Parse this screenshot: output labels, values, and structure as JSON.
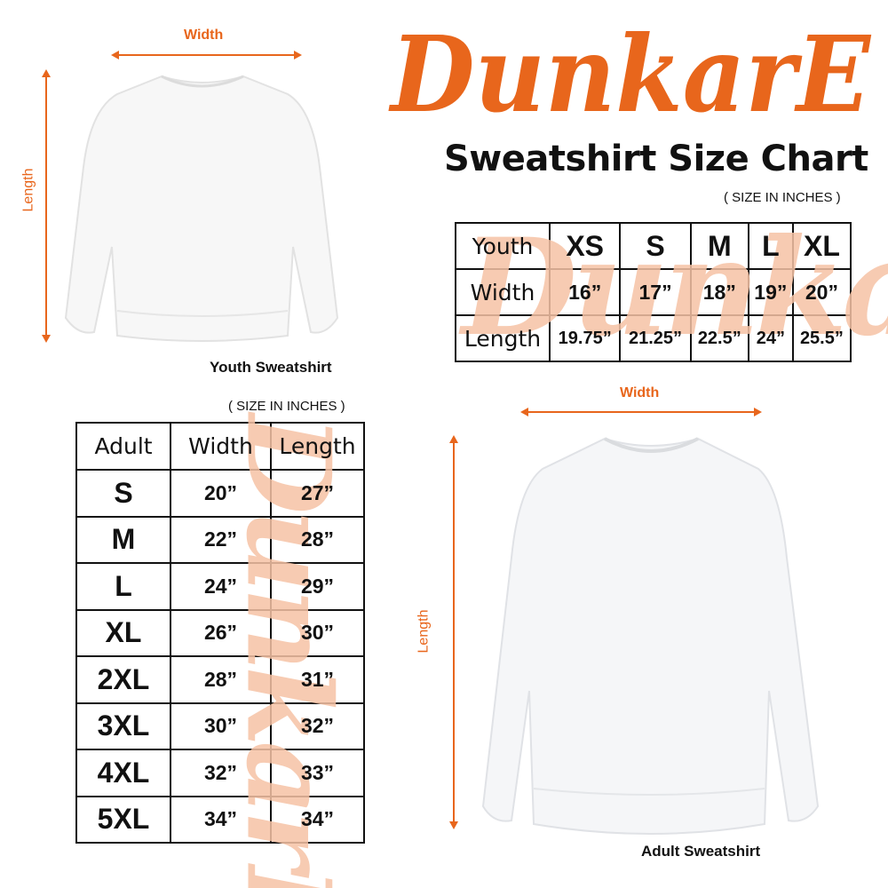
{
  "brand": {
    "logo_text": "DunkarE",
    "color": "#e8661c"
  },
  "title": "Sweatshirt Size Chart",
  "youth": {
    "units_note": "( SIZE IN INCHES )",
    "caption": "Youth Sweatshirt",
    "width_label": "Width",
    "length_label": "Length",
    "table": {
      "header": [
        "Youth",
        "XS",
        "S",
        "M",
        "L",
        "XL"
      ],
      "rows": [
        [
          "Width",
          "16”",
          "17”",
          "18”",
          "19”",
          "20”"
        ],
        [
          "Length",
          "19.75”",
          "21.25”",
          "22.5”",
          "24”",
          "25.5”"
        ]
      ]
    }
  },
  "adult": {
    "units_note": "( SIZE IN INCHES )",
    "caption": "Adult Sweatshirt",
    "width_label": "Width",
    "length_label": "Length",
    "table": {
      "header": [
        "Adult",
        "Width",
        "Length"
      ],
      "rows": [
        [
          "S",
          "20”",
          "27”"
        ],
        [
          "M",
          "22”",
          "28”"
        ],
        [
          "L",
          "24”",
          "29”"
        ],
        [
          "XL",
          "26”",
          "30”"
        ],
        [
          "2XL",
          "28”",
          "31”"
        ],
        [
          "3XL",
          "30”",
          "32”"
        ],
        [
          "4XL",
          "32”",
          "33”"
        ],
        [
          "5XL",
          "34”",
          "34”"
        ]
      ]
    }
  }
}
